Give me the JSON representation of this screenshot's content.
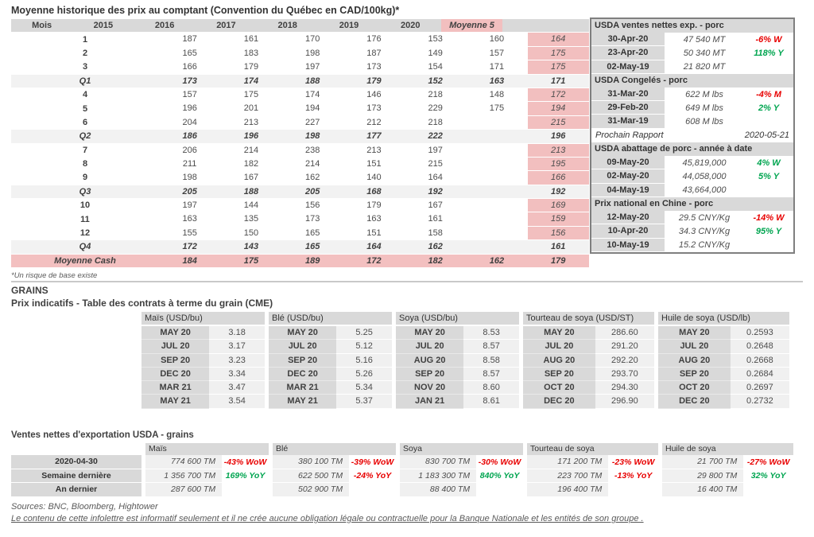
{
  "page": {
    "title": "Moyenne historique des prix au comptant (Convention du Québec en CAD/100kg)*",
    "footnote": "*Un risque de base existe",
    "grains_heading": "GRAINS",
    "cme_heading": "Prix indicatifs - Table des contrats à terme du grain (CME)",
    "exports_heading": "Ventes nettes d'exportation USDA - grains",
    "sources": "Sources: BNC, Bloomberg, Hightower",
    "disclaimer": "Le contenu de cette infolettre est informatif seulement et il ne crée aucune obligation légale ou contractuelle pour la Banque Nationale et les entités de son groupe ."
  },
  "colors": {
    "accent_pink": "#f2bfbf",
    "header_gray": "#d9d9d9",
    "row_gray": "#f2f2f2",
    "positive_green": "#00a550",
    "negative_red": "#e80000"
  },
  "main_table": {
    "header": [
      "Mois",
      "2015",
      "2016",
      "2017",
      "2018",
      "2019",
      "2020",
      "Moyenne 5"
    ],
    "rows": [
      {
        "type": "m",
        "label": "1",
        "v": [
          "187",
          "161",
          "170",
          "176",
          "153",
          "160",
          "164"
        ]
      },
      {
        "type": "m",
        "label": "2",
        "v": [
          "165",
          "183",
          "198",
          "187",
          "149",
          "157",
          "175"
        ]
      },
      {
        "type": "m",
        "label": "3",
        "v": [
          "166",
          "179",
          "197",
          "173",
          "154",
          "171",
          "175"
        ]
      },
      {
        "type": "q",
        "label": "Q1",
        "v": [
          "173",
          "174",
          "188",
          "179",
          "152",
          "163",
          "171"
        ]
      },
      {
        "type": "m",
        "label": "4",
        "v": [
          "157",
          "175",
          "174",
          "146",
          "218",
          "148",
          "172"
        ]
      },
      {
        "type": "m",
        "label": "5",
        "v": [
          "196",
          "201",
          "194",
          "173",
          "229",
          "175",
          "194"
        ]
      },
      {
        "type": "m",
        "label": "6",
        "v": [
          "204",
          "213",
          "227",
          "212",
          "218",
          "",
          "215"
        ]
      },
      {
        "type": "q",
        "label": "Q2",
        "v": [
          "186",
          "196",
          "198",
          "177",
          "222",
          "",
          "196"
        ]
      },
      {
        "type": "m",
        "label": "7",
        "v": [
          "206",
          "214",
          "238",
          "213",
          "197",
          "",
          "213"
        ]
      },
      {
        "type": "m",
        "label": "8",
        "v": [
          "211",
          "182",
          "214",
          "151",
          "215",
          "",
          "195"
        ]
      },
      {
        "type": "m",
        "label": "9",
        "v": [
          "198",
          "167",
          "162",
          "140",
          "164",
          "",
          "166"
        ]
      },
      {
        "type": "q",
        "label": "Q3",
        "v": [
          "205",
          "188",
          "205",
          "168",
          "192",
          "",
          "192"
        ]
      },
      {
        "type": "m",
        "label": "10",
        "v": [
          "197",
          "144",
          "156",
          "179",
          "167",
          "",
          "169"
        ]
      },
      {
        "type": "m",
        "label": "11",
        "v": [
          "163",
          "135",
          "173",
          "163",
          "161",
          "",
          "159"
        ]
      },
      {
        "type": "m",
        "label": "12",
        "v": [
          "155",
          "150",
          "165",
          "151",
          "158",
          "",
          "156"
        ]
      },
      {
        "type": "q",
        "label": "Q4",
        "v": [
          "172",
          "143",
          "165",
          "164",
          "162",
          "",
          "161"
        ]
      },
      {
        "type": "cash",
        "label": "Moyenne Cash",
        "v": [
          "184",
          "175",
          "189",
          "172",
          "182",
          "162",
          "179"
        ]
      }
    ]
  },
  "panel": {
    "sections": [
      {
        "title": "USDA ventes nettes exp. - porc",
        "rows": [
          {
            "date": "30-Apr-20",
            "val": "47 540  MT",
            "chg": "-6% W",
            "c": "red"
          },
          {
            "date": "23-Apr-20",
            "val": "50 340  MT",
            "chg": "118% Y",
            "c": "green"
          },
          {
            "date": "02-May-19",
            "val": "21 820  MT",
            "chg": "",
            "c": ""
          }
        ]
      },
      {
        "title": "USDA Congelés - porc",
        "rows": [
          {
            "date": "31-Mar-20",
            "val": "622 M lbs",
            "chg": "-4% M",
            "c": "red"
          },
          {
            "date": "29-Feb-20",
            "val": "649 M lbs",
            "chg": "2% Y",
            "c": "green"
          },
          {
            "date": "31-Mar-19",
            "val": "608 M lbs",
            "chg": "",
            "c": ""
          }
        ]
      },
      {
        "title": "USDA abattage de porc - année à date",
        "rows": [
          {
            "date": "09-May-20",
            "val": "45,819,000",
            "chg": "4% W",
            "c": "green"
          },
          {
            "date": "02-May-20",
            "val": "44,058,000",
            "chg": "5% Y",
            "c": "green"
          },
          {
            "date": "04-May-19",
            "val": "43,664,000",
            "chg": "",
            "c": ""
          }
        ]
      },
      {
        "title": "Prix national en Chine - porc",
        "rows": [
          {
            "date": "12-May-20",
            "val": "29.5 CNY/Kg",
            "chg": "-14% W",
            "c": "red"
          },
          {
            "date": "10-Apr-20",
            "val": "34.3 CNY/Kg",
            "chg": "95% Y",
            "c": "green"
          },
          {
            "date": "10-May-19",
            "val": "15.2 CNY/Kg",
            "chg": "",
            "c": ""
          }
        ]
      }
    ],
    "rapport": {
      "label": "Prochain Rapport",
      "date": "2020-05-21"
    }
  },
  "cme": {
    "tables": [
      {
        "title": "Maïs (USD/bu)",
        "rows": [
          {
            "m": "MAY 20",
            "v": "3.18"
          },
          {
            "m": "JUL 20",
            "v": "3.17"
          },
          {
            "m": "SEP 20",
            "v": "3.23"
          },
          {
            "m": "DEC 20",
            "v": "3.34"
          },
          {
            "m": "MAR 21",
            "v": "3.47"
          },
          {
            "m": "MAY 21",
            "v": "3.54"
          }
        ]
      },
      {
        "title": "Blé (USD/bu)",
        "rows": [
          {
            "m": "MAY 20",
            "v": "5.25"
          },
          {
            "m": "JUL 20",
            "v": "5.12"
          },
          {
            "m": "SEP 20",
            "v": "5.16"
          },
          {
            "m": "DEC 20",
            "v": "5.26"
          },
          {
            "m": "MAR 21",
            "v": "5.34"
          },
          {
            "m": "MAY 21",
            "v": "5.37"
          }
        ]
      },
      {
        "title": "Soya (USD/bu)",
        "rows": [
          {
            "m": "MAY 20",
            "v": "8.53"
          },
          {
            "m": "JUL 20",
            "v": "8.57"
          },
          {
            "m": "AUG 20",
            "v": "8.58"
          },
          {
            "m": "SEP 20",
            "v": "8.57"
          },
          {
            "m": "NOV 20",
            "v": "8.60"
          },
          {
            "m": "JAN 21",
            "v": "8.61"
          }
        ]
      },
      {
        "title": "Tourteau de soya (USD/ST)",
        "rows": [
          {
            "m": "MAY 20",
            "v": "286.60"
          },
          {
            "m": "JUL 20",
            "v": "291.20"
          },
          {
            "m": "AUG 20",
            "v": "292.20"
          },
          {
            "m": "SEP 20",
            "v": "293.70"
          },
          {
            "m": "OCT 20",
            "v": "294.30"
          },
          {
            "m": "DEC 20",
            "v": "296.90"
          }
        ]
      },
      {
        "title": "Huile de soya (USD/lb)",
        "rows": [
          {
            "m": "MAY 20",
            "v": "0.2593"
          },
          {
            "m": "JUL 20",
            "v": "0.2648"
          },
          {
            "m": "AUG 20",
            "v": "0.2668"
          },
          {
            "m": "SEP 20",
            "v": "0.2684"
          },
          {
            "m": "OCT 20",
            "v": "0.2697"
          },
          {
            "m": "DEC 20",
            "v": "0.2732"
          }
        ]
      }
    ]
  },
  "exports": {
    "row_labels": [
      "2020-04-30",
      "Semaine dernière",
      "An dernier"
    ],
    "sections": [
      {
        "title": "Maïs",
        "rows": [
          {
            "v": "774 600 TM",
            "chg": "-43% WoW",
            "c": "red"
          },
          {
            "v": "1 356 700 TM",
            "chg": "169% YoY",
            "c": "green"
          },
          {
            "v": "287 600 TM",
            "chg": "",
            "c": ""
          }
        ]
      },
      {
        "title": "Blé",
        "rows": [
          {
            "v": "380 100 TM",
            "chg": "-39% WoW",
            "c": "red"
          },
          {
            "v": "622 500 TM",
            "chg": "-24% YoY",
            "c": "red"
          },
          {
            "v": "502 900 TM",
            "chg": "",
            "c": ""
          }
        ]
      },
      {
        "title": "Soya",
        "rows": [
          {
            "v": "830 700 TM",
            "chg": "-30% WoW",
            "c": "red"
          },
          {
            "v": "1 183 300 TM",
            "chg": "840% YoY",
            "c": "green"
          },
          {
            "v": "88 400 TM",
            "chg": "",
            "c": ""
          }
        ]
      },
      {
        "title": "Tourteau de soya",
        "rows": [
          {
            "v": "171 200 TM",
            "chg": "-23% WoW",
            "c": "red"
          },
          {
            "v": "223 700 TM",
            "chg": "-13% YoY",
            "c": "red"
          },
          {
            "v": "196 400 TM",
            "chg": "",
            "c": ""
          }
        ]
      },
      {
        "title": "Huile de soya",
        "rows": [
          {
            "v": "21 700 TM",
            "chg": "-27% WoW",
            "c": "red"
          },
          {
            "v": "29 800 TM",
            "chg": "32% YoY",
            "c": "green"
          },
          {
            "v": "16 400 TM",
            "chg": "",
            "c": ""
          }
        ]
      }
    ]
  }
}
